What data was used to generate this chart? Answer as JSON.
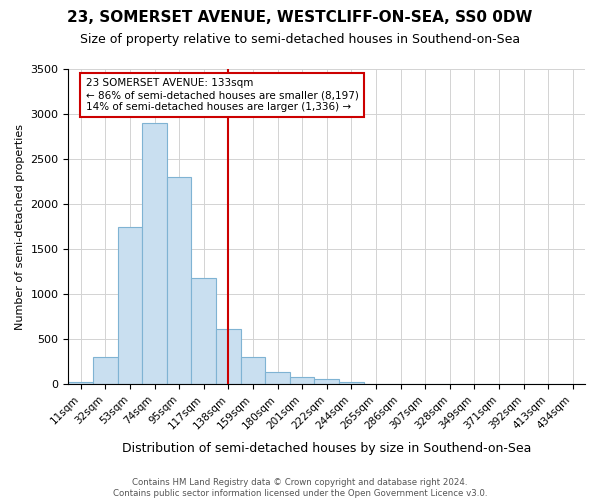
{
  "title": "23, SOMERSET AVENUE, WESTCLIFF-ON-SEA, SS0 0DW",
  "subtitle": "Size of property relative to semi-detached houses in Southend-on-Sea",
  "xlabel": "Distribution of semi-detached houses by size in Southend-on-Sea",
  "ylabel": "Number of semi-detached properties",
  "footnote": "Contains HM Land Registry data © Crown copyright and database right 2024.\nContains public sector information licensed under the Open Government Licence v3.0.",
  "bin_labels": [
    "11sqm",
    "32sqm",
    "53sqm",
    "74sqm",
    "95sqm",
    "117sqm",
    "138sqm",
    "159sqm",
    "180sqm",
    "201sqm",
    "222sqm",
    "244sqm",
    "265sqm",
    "286sqm",
    "307sqm",
    "328sqm",
    "349sqm",
    "371sqm",
    "392sqm",
    "413sqm",
    "434sqm"
  ],
  "bar_values": [
    30,
    300,
    1750,
    2900,
    2300,
    1175,
    610,
    300,
    140,
    80,
    55,
    30,
    5,
    0,
    0,
    0,
    0,
    0,
    0,
    0,
    0
  ],
  "bar_color": "#c9dff0",
  "bar_edge_color": "#7fb3d3",
  "property_bin_index": 6,
  "red_line_label": "23 SOMERSET AVENUE: 133sqm",
  "annotation_line1": "← 86% of semi-detached houses are smaller (8,197)",
  "annotation_line2": "14% of semi-detached houses are larger (1,336) →",
  "red_color": "#cc0000",
  "ylim": [
    0,
    3500
  ],
  "yticks": [
    0,
    500,
    1000,
    1500,
    2000,
    2500,
    3000,
    3500
  ]
}
